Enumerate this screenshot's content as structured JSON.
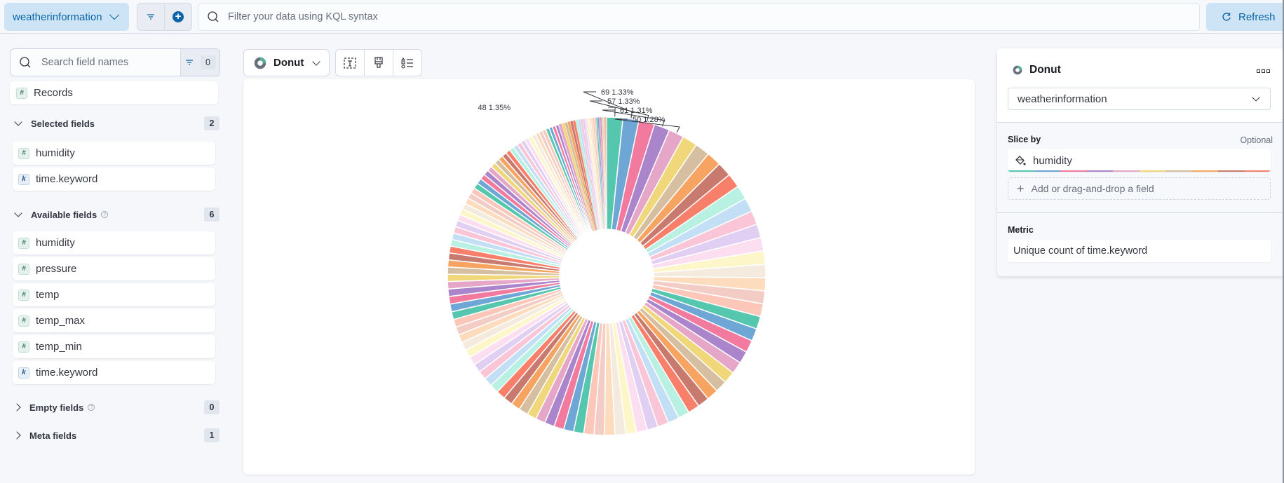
{
  "topbar": {
    "data_view": "weatherinformation",
    "kql_placeholder": "Filter your data using KQL syntax",
    "refresh_label": "Refresh"
  },
  "sidebar": {
    "search_placeholder": "Search field names",
    "filter_count": "0",
    "records_label": "Records",
    "selected": {
      "title": "Selected fields",
      "count": "2",
      "fields": [
        {
          "name": "humidity",
          "type": "#"
        },
        {
          "name": "time.keyword",
          "type": "k"
        }
      ]
    },
    "available": {
      "title": "Available fields",
      "count": "6",
      "fields": [
        {
          "name": "humidity",
          "type": "#"
        },
        {
          "name": "pressure",
          "type": "#"
        },
        {
          "name": "temp",
          "type": "#"
        },
        {
          "name": "temp_max",
          "type": "#"
        },
        {
          "name": "temp_min",
          "type": "#"
        },
        {
          "name": "time.keyword",
          "type": "k"
        }
      ]
    },
    "empty": {
      "title": "Empty fields",
      "count": "0"
    },
    "meta": {
      "title": "Meta fields",
      "count": "1"
    }
  },
  "workspace": {
    "chart_type": "Donut"
  },
  "config": {
    "title": "Donut",
    "data_view": "weatherinformation",
    "slice_by_label": "Slice by",
    "optional_label": "Optional",
    "slice_by_field": "humidity",
    "add_field_label": "Add or drag-and-drop a field",
    "metric_label": "Metric",
    "metric_value": "Unique count of time.keyword"
  },
  "colors": {
    "accent": "#0b64a8",
    "accent_bg": "#cce4f5",
    "palette": [
      "#54c7ae",
      "#6ea7d6",
      "#f27a9e",
      "#aa85cc",
      "#e6a6c7",
      "#f0d77a",
      "#d5bfa0",
      "#f7a462",
      "#c97a6e",
      "#f8806b",
      "#b8f0e2",
      "#c2dff5",
      "#fbc5d8",
      "#e0cff3",
      "#fbdff0",
      "#fdf6c9",
      "#f4eadd",
      "#fcdcbd",
      "#f2ccc5",
      "#fcc7b9"
    ]
  },
  "chart_data": {
    "type": "pie",
    "variant": "donut",
    "title": "",
    "category_field": "humidity",
    "metric": "Unique count of time.keyword",
    "start_angle": "12 o'clock, clockwise, largest first",
    "labeled_slices": [
      {
        "label": "48",
        "percent": 1.35
      },
      {
        "label": "69",
        "percent": 1.33
      },
      {
        "label": "57",
        "percent": 1.33
      },
      {
        "label": "61",
        "percent": 1.31
      },
      {
        "label": "50",
        "percent": 1.28
      }
    ],
    "unlabeled_slices_note": "Remaining slices have no visible value or percentage; only their approximate tapering shape is rendered."
  },
  "render_hints": {
    "unlabeled_slice_count": 125,
    "unlabeled_taper_start_pct": 1.26,
    "unlabeled_taper_end_pct": 0.05
  }
}
